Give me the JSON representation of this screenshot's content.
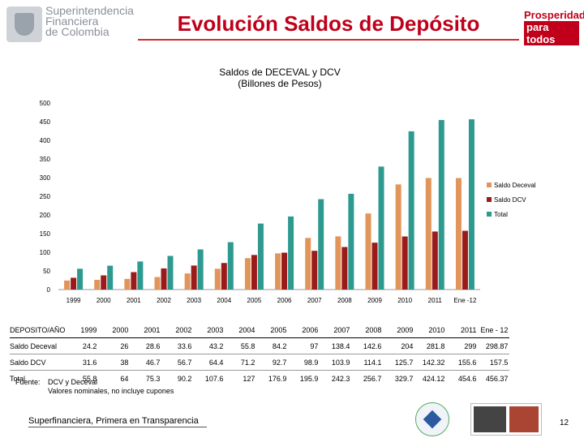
{
  "header": {
    "logo_left_lines": [
      "Superintendencia",
      "Financiera",
      "de Colombia"
    ],
    "title": "Evolución Saldos de Depósito",
    "logo_right_line1": "Prosperidad",
    "logo_right_line2": "para todos"
  },
  "chart_data": {
    "type": "bar",
    "title": "Saldos de DECEVAL y DCV",
    "subtitle": "(Billones de Pesos)",
    "categories": [
      "1999",
      "2000",
      "2001",
      "2002",
      "2003",
      "2004",
      "2005",
      "2006",
      "2007",
      "2008",
      "2009",
      "2010",
      "2011",
      "Ene -12"
    ],
    "series": [
      {
        "name": "Saldo Deceval",
        "color": "#e2955a",
        "values": [
          24.2,
          26,
          28.6,
          33.6,
          43.2,
          55.8,
          84.2,
          97,
          138.4,
          142.6,
          204,
          281.8,
          299,
          298.87
        ]
      },
      {
        "name": "Saldo DCV",
        "color": "#9b1b1b",
        "values": [
          31.6,
          38,
          46.7,
          56.7,
          64.4,
          71.2,
          92.7,
          98.9,
          103.9,
          114.1,
          125.7,
          142.32,
          155.6,
          157.5
        ]
      },
      {
        "name": "Total",
        "color": "#2e9a8f",
        "values": [
          55.8,
          64,
          75.3,
          90.2,
          107.6,
          127,
          176.9,
          195.9,
          242.3,
          256.7,
          329.7,
          424.12,
          454.6,
          456.37
        ]
      }
    ],
    "ylim": [
      0,
      500
    ],
    "yticks": [
      0,
      50,
      100,
      150,
      200,
      250,
      300,
      350,
      400,
      450,
      500
    ],
    "legend_position": "right"
  },
  "table": {
    "header_label": "DEPOSITO/AÑO",
    "years": [
      "1999",
      "2000",
      "2001",
      "2002",
      "2003",
      "2004",
      "2005",
      "2006",
      "2007",
      "2008",
      "2009",
      "2010",
      "2011",
      "Ene - 12"
    ],
    "rows": [
      {
        "label": "Saldo Deceval",
        "values": [
          "24.2",
          "26",
          "28.6",
          "33.6",
          "43.2",
          "55.8",
          "84.2",
          "97",
          "138.4",
          "142.6",
          "204",
          "281.8",
          "299",
          "298.87"
        ]
      },
      {
        "label": "Saldo DCV",
        "values": [
          "31.6",
          "38",
          "46.7",
          "56.7",
          "64.4",
          "71.2",
          "92.7",
          "98.9",
          "103.9",
          "114.1",
          "125.7",
          "142.32",
          "155.6",
          "157.5"
        ]
      },
      {
        "label": "Total",
        "values": [
          "55.8",
          "64",
          "75.3",
          "90.2",
          "107.6",
          "127",
          "176.9",
          "195.9",
          "242.3",
          "256.7",
          "329.7",
          "424.12",
          "454.6",
          "456.37"
        ]
      }
    ]
  },
  "source": {
    "label": "Fuente:",
    "line1": "DCV y Deceval",
    "line2": "Valores nominales, no incluye cupones"
  },
  "footer": {
    "text": "Superfinanciera, Primera en Transparencia",
    "page_number": "12"
  }
}
